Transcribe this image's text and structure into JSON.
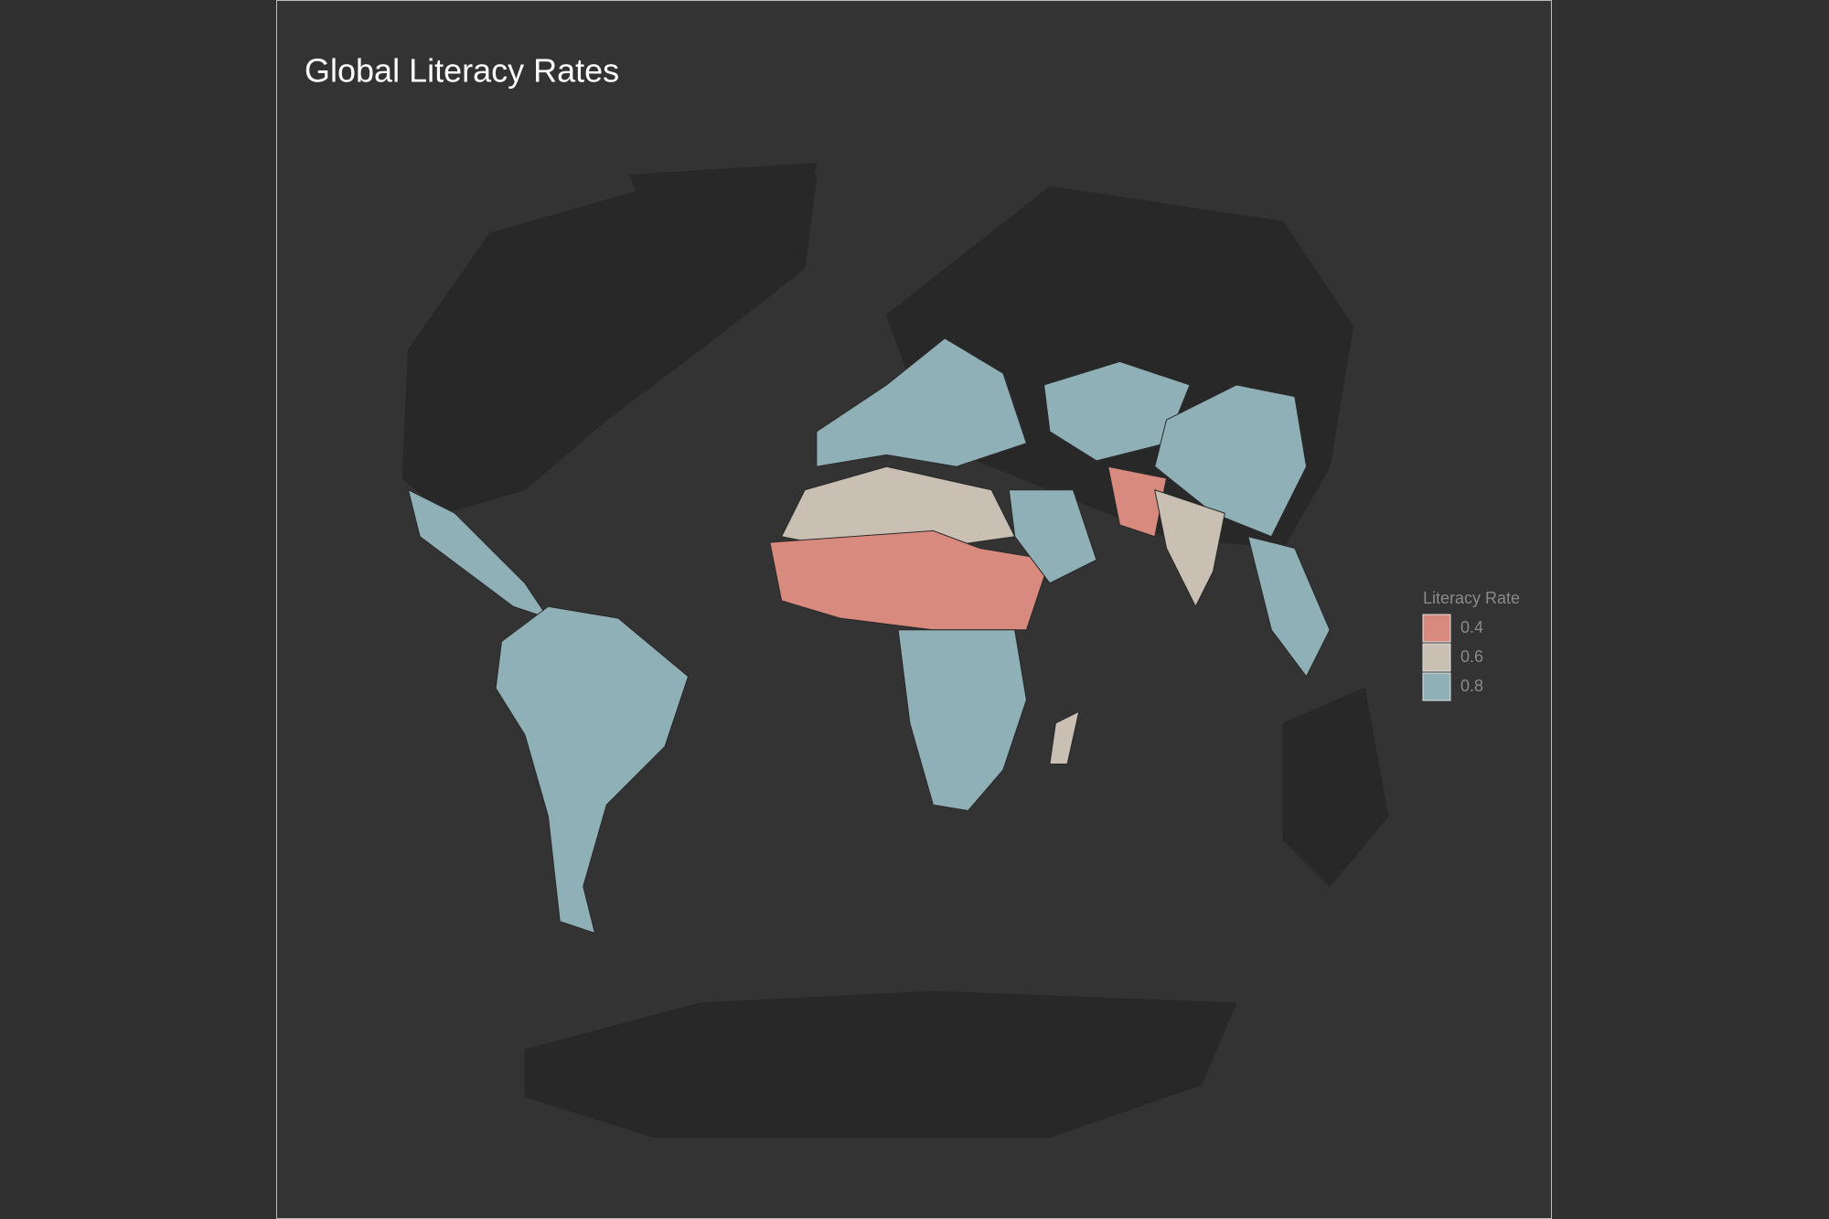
{
  "title": "Global Literacy Rates",
  "legend": {
    "title": "Literacy Rate",
    "items": [
      {
        "value": 0.4,
        "color": "#d98a7e"
      },
      {
        "value": 0.6,
        "color": "#c9bfb3"
      },
      {
        "value": 0.8,
        "color": "#8fb0b6"
      }
    ]
  }
}
